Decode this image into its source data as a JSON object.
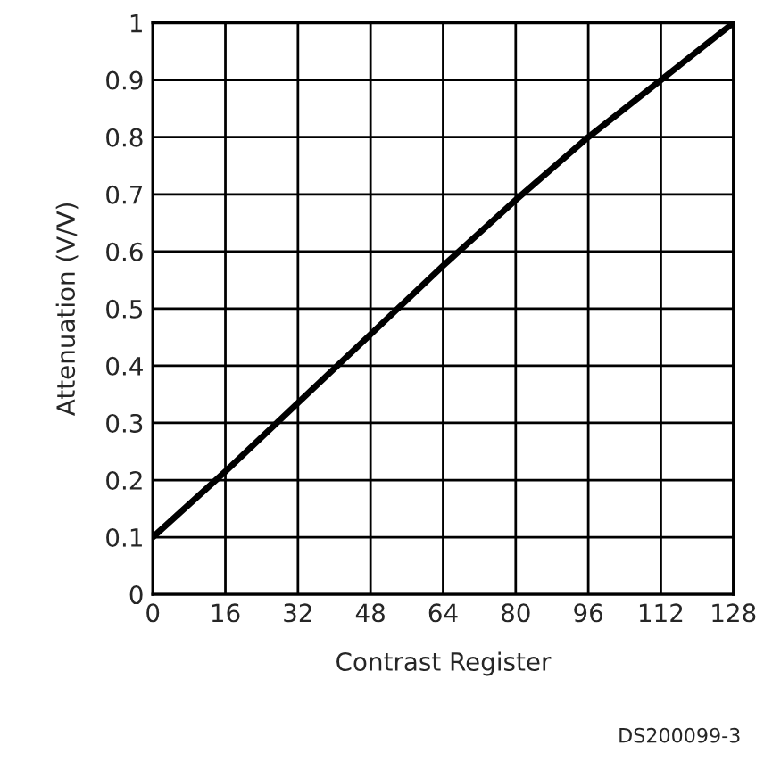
{
  "chart_data": {
    "type": "line",
    "xlabel": "Contrast Register",
    "ylabel": "Attenuation (V/V)",
    "x": [
      0,
      16,
      32,
      48,
      64,
      80,
      96,
      112,
      128
    ],
    "series": [
      {
        "color": "#000000",
        "values": [
          0.1,
          0.215,
          0.335,
          0.455,
          0.575,
          0.69,
          0.8,
          0.9,
          1.0
        ]
      }
    ],
    "xlim": [
      0,
      128
    ],
    "xticks": [
      0,
      16,
      32,
      48,
      64,
      80,
      96,
      112,
      128
    ],
    "ylim": [
      0,
      1
    ],
    "yticks": [
      0,
      0.1,
      0.2,
      0.3,
      0.4,
      0.5,
      0.6,
      0.7,
      0.8,
      0.9,
      1
    ],
    "grid": true,
    "line_style": "solid",
    "marker": "none",
    "annotations": [
      "DS200099-3"
    ]
  }
}
